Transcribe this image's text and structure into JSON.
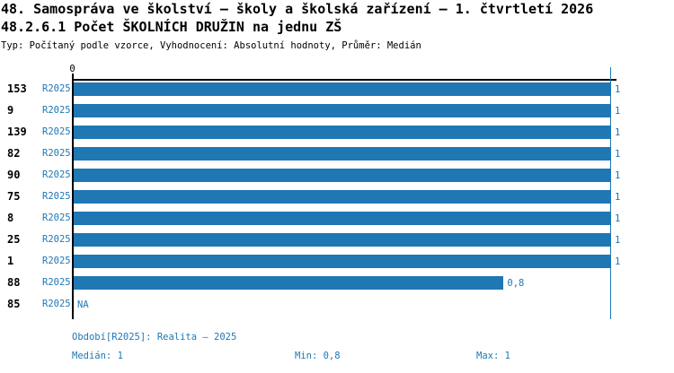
{
  "header": {
    "title_line1": "48. Samospráva ve školství – školy a školská zařízení – 1. čtvrtletí 2026",
    "title_line2": "48.2.6.1 Počet ŠKOLNÍCH DRUŽIN na jednu ZŠ",
    "meta_line": "Typ: Počítaný podle vzorce, Vyhodnocení: Absolutní hodnoty, Průměr: Medián"
  },
  "chart_data": {
    "type": "bar",
    "orientation": "horizontal",
    "title": "48.2.6.1 Počet ŠKOLNÍCH DRUŽIN na jednu ZŠ",
    "x_axis": {
      "min": 0,
      "max": 1,
      "tick_labels": [
        "0"
      ]
    },
    "grid": false,
    "bar_color": "#1f77b4",
    "text_color": "#1f77b4",
    "reference_line": {
      "value": 1,
      "color": "#1f77b4"
    },
    "categories": [
      "153",
      "9",
      "139",
      "82",
      "90",
      "75",
      "8",
      "25",
      "1",
      "88",
      "85"
    ],
    "series": [
      {
        "name": "R2025",
        "values": [
          1,
          1,
          1,
          1,
          1,
          1,
          1,
          1,
          1,
          0.8,
          null
        ]
      }
    ],
    "rows": [
      {
        "id": "153",
        "period": "R2025",
        "value": 1,
        "value_display": "1"
      },
      {
        "id": "9",
        "period": "R2025",
        "value": 1,
        "value_display": "1"
      },
      {
        "id": "139",
        "period": "R2025",
        "value": 1,
        "value_display": "1"
      },
      {
        "id": "82",
        "period": "R2025",
        "value": 1,
        "value_display": "1"
      },
      {
        "id": "90",
        "period": "R2025",
        "value": 1,
        "value_display": "1"
      },
      {
        "id": "75",
        "period": "R2025",
        "value": 1,
        "value_display": "1"
      },
      {
        "id": "8",
        "period": "R2025",
        "value": 1,
        "value_display": "1"
      },
      {
        "id": "25",
        "period": "R2025",
        "value": 1,
        "value_display": "1"
      },
      {
        "id": "1",
        "period": "R2025",
        "value": 1,
        "value_display": "1"
      },
      {
        "id": "88",
        "period": "R2025",
        "value": 0.8,
        "value_display": "0,8"
      },
      {
        "id": "85",
        "period": "R2025",
        "value": null,
        "value_display": "NA"
      }
    ]
  },
  "footer": {
    "period": "Období[R2025]: Realita – 2025",
    "median": "Medián: 1",
    "min": "Min: 0,8",
    "max": "Max: 1"
  }
}
